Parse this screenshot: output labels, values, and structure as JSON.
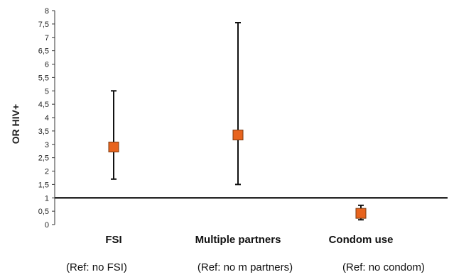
{
  "chart_data": {
    "type": "scatter",
    "ylabel": "OR HIV+",
    "ylim": [
      0,
      8
    ],
    "yticks": [
      0,
      0.5,
      1,
      1.5,
      2,
      2.5,
      3,
      3.5,
      4,
      4.5,
      5,
      5.5,
      6,
      6.5,
      7,
      7.5,
      8
    ],
    "ytick_labels": [
      "0",
      "0,5",
      "1",
      "1,5",
      "2",
      "2,5",
      "3",
      "3,5",
      "4",
      "4,5",
      "5",
      "5,5",
      "6",
      "6,5",
      "7",
      "7,5",
      "8"
    ],
    "reference_line": 1,
    "categories": [
      "FSI",
      "Multiple partners",
      "Condom use"
    ],
    "category_refs": [
      "(Ref: no FSI)",
      "(Ref: no m partners)",
      "(Ref: no condom)"
    ],
    "points": [
      {
        "category": "FSI",
        "or": 2.9,
        "ci_low": 1.7,
        "ci_high": 5.0
      },
      {
        "category": "Multiple partners",
        "or": 3.35,
        "ci_low": 1.5,
        "ci_high": 7.55
      },
      {
        "category": "Condom use",
        "or": 0.42,
        "ci_low": 0.18,
        "ci_high": 0.72
      }
    ],
    "grid": false,
    "marker_color": "#e8641e",
    "marker_edge_color": "#7a3a10",
    "errorbar_color": "#111111",
    "axis_color": "#333333"
  }
}
